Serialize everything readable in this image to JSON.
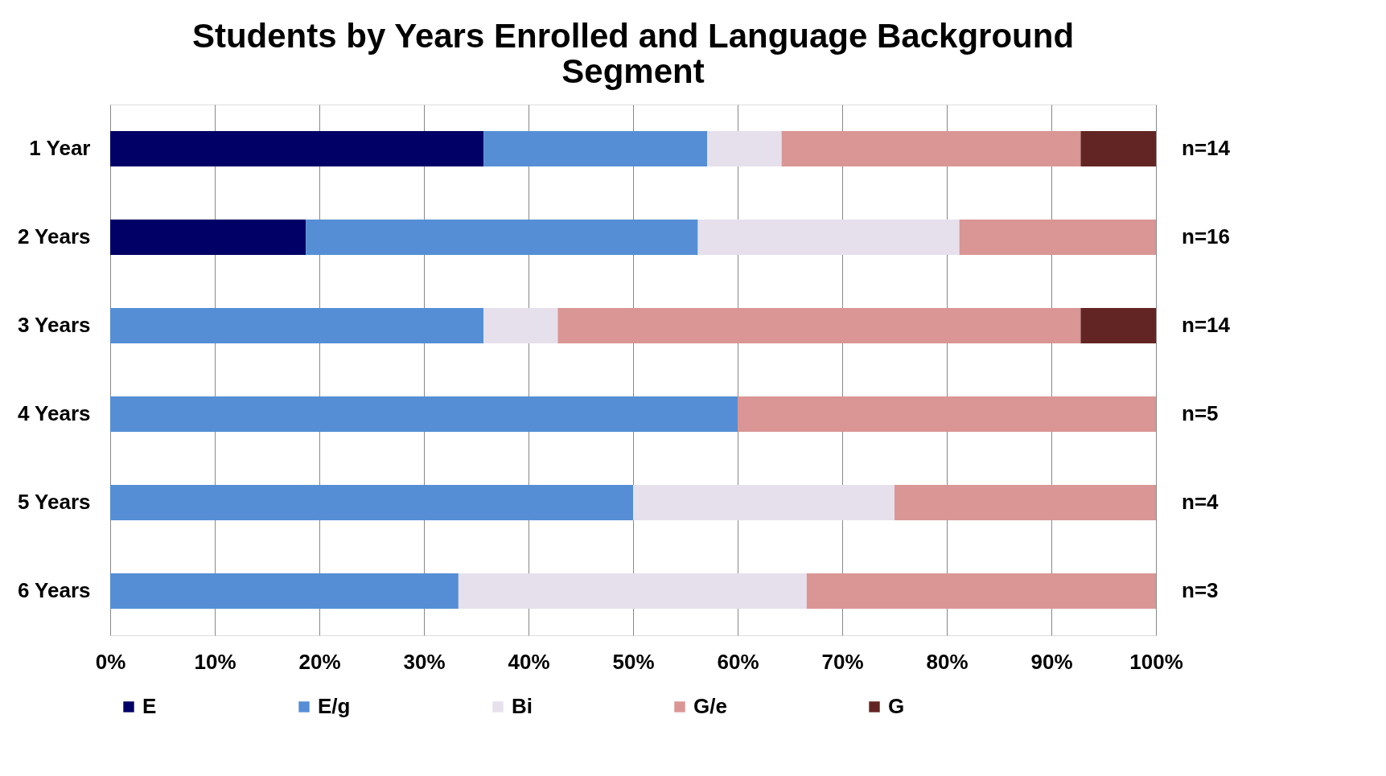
{
  "chart_data": {
    "type": "bar",
    "orientation": "horizontal",
    "stacked": true,
    "title": "Students by Years Enrolled and Language Background Segment",
    "categories": [
      "1 Year",
      "2 Years",
      "3 Years",
      "4 Years",
      "5 Years",
      "6 Years"
    ],
    "series": [
      {
        "name": "E",
        "color": "#000066",
        "values": [
          35.7,
          18.7,
          null,
          null,
          null,
          null
        ]
      },
      {
        "name": "E/g",
        "color": "#558ed5",
        "values": [
          21.4,
          37.5,
          35.7,
          60,
          50,
          33.3
        ]
      },
      {
        "name": "Bi",
        "color": "#e6e0ec",
        "values": [
          7.1,
          25,
          7.1,
          null,
          25,
          33.3
        ]
      },
      {
        "name": "G/e",
        "color": "#d99694",
        "values": [
          28.6,
          18.8,
          50,
          40,
          25,
          33.4
        ]
      },
      {
        "name": "G",
        "color": "#632523",
        "values": [
          7.2,
          null,
          7.2,
          null,
          null,
          null
        ]
      }
    ],
    "xlim": [
      0,
      100
    ],
    "xticks": [
      {
        "value": 0,
        "label": "0%"
      },
      {
        "value": 10,
        "label": "10%"
      },
      {
        "value": 20,
        "label": "20%"
      },
      {
        "value": 30,
        "label": "30%"
      },
      {
        "value": 40,
        "label": "40%"
      },
      {
        "value": 50,
        "label": "50%"
      },
      {
        "value": 60,
        "label": "60%"
      },
      {
        "value": 70,
        "label": "70%"
      },
      {
        "value": 80,
        "label": "80%"
      },
      {
        "value": 90,
        "label": "90%"
      },
      {
        "value": 100,
        "label": "100%"
      }
    ],
    "annotations": [
      "n=14",
      "n=16",
      "n=14",
      "n=5",
      "n=4",
      "n=3"
    ],
    "grid": "x",
    "legend": "bottom"
  }
}
